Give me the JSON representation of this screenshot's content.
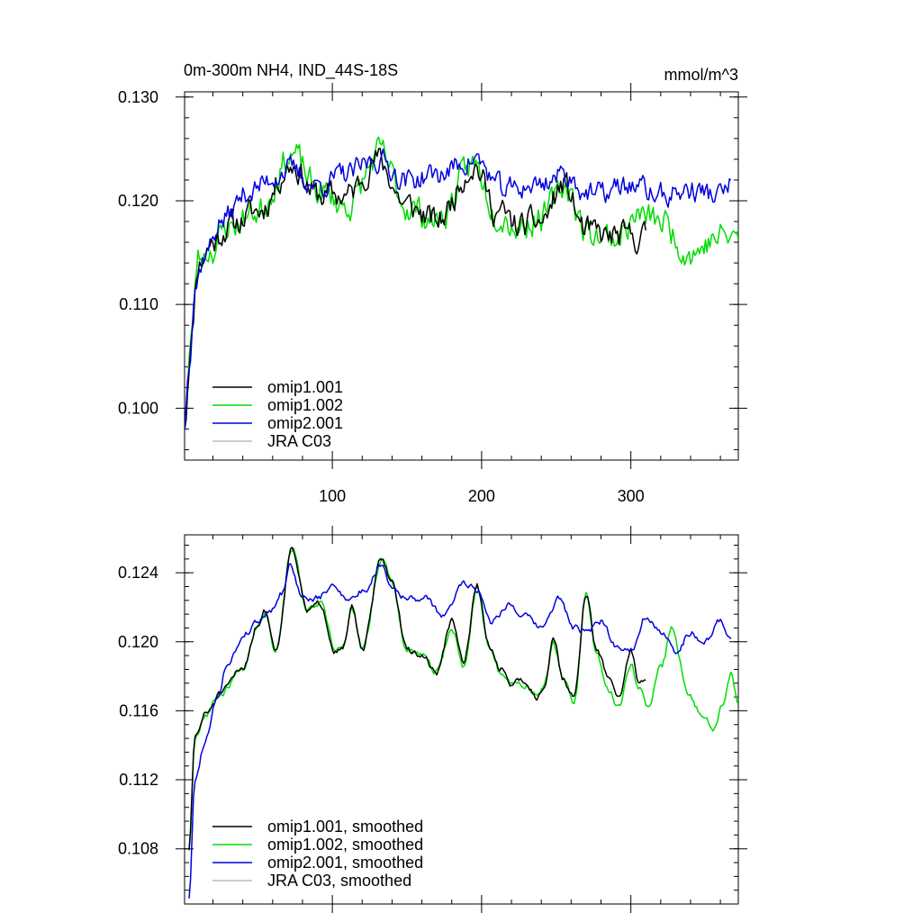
{
  "chart_data": [
    {
      "type": "line",
      "title": "0m-300m NH4, IND_44S-18S",
      "units": "mmol/m^3",
      "xlim": [
        1,
        372
      ],
      "ylim": [
        0.095,
        0.1305
      ],
      "xticks": [
        100,
        200,
        300
      ],
      "xtick_labels": [
        "100",
        "200",
        "300"
      ],
      "yticks": [
        0.1,
        0.11,
        0.12,
        0.13
      ],
      "ytick_labels": [
        "0.100",
        "0.110",
        "0.120",
        "0.130"
      ],
      "legend_position": "bottom-left",
      "series": [
        {
          "name": "omip1.001",
          "color": "#000000",
          "x_end": 310,
          "anchors": [
            [
              1,
              0.0985
            ],
            [
              5,
              0.106
            ],
            [
              10,
              0.114
            ],
            [
              20,
              0.116
            ],
            [
              30,
              0.1175
            ],
            [
              50,
              0.119
            ],
            [
              73,
              0.1235
            ],
            [
              90,
              0.1205
            ],
            [
              110,
              0.1205
            ],
            [
              130,
              0.124
            ],
            [
              150,
              0.1195
            ],
            [
              170,
              0.118
            ],
            [
              195,
              0.1235
            ],
            [
              210,
              0.119
            ],
            [
              225,
              0.1175
            ],
            [
              240,
              0.118
            ],
            [
              255,
              0.1215
            ],
            [
              270,
              0.117
            ],
            [
              285,
              0.1165
            ],
            [
              300,
              0.1165
            ],
            [
              310,
              0.1165
            ]
          ],
          "noise": 0.0014,
          "seed": 11
        },
        {
          "name": "omip1.002",
          "color": "#00dd00",
          "x_end": 372,
          "anchors": [
            [
              1,
              0.0985
            ],
            [
              5,
              0.106
            ],
            [
              10,
              0.1145
            ],
            [
              20,
              0.1155
            ],
            [
              30,
              0.1175
            ],
            [
              50,
              0.119
            ],
            [
              73,
              0.1245
            ],
            [
              90,
              0.121
            ],
            [
              110,
              0.1195
            ],
            [
              132,
              0.1245
            ],
            [
              150,
              0.1195
            ],
            [
              170,
              0.118
            ],
            [
              195,
              0.1235
            ],
            [
              210,
              0.119
            ],
            [
              225,
              0.1175
            ],
            [
              240,
              0.1185
            ],
            [
              257,
              0.1215
            ],
            [
              270,
              0.117
            ],
            [
              290,
              0.1165
            ],
            [
              305,
              0.1185
            ],
            [
              320,
              0.118
            ],
            [
              340,
              0.115
            ],
            [
              360,
              0.1165
            ],
            [
              372,
              0.1165
            ]
          ],
          "noise": 0.0015,
          "seed": 23
        },
        {
          "name": "omip2.001",
          "color": "#0000dd",
          "x_end": 367,
          "anchors": [
            [
              1,
              0.0985
            ],
            [
              4,
              0.105
            ],
            [
              8,
              0.112
            ],
            [
              15,
              0.115
            ],
            [
              25,
              0.118
            ],
            [
              45,
              0.121
            ],
            [
              70,
              0.123
            ],
            [
              90,
              0.1215
            ],
            [
              110,
              0.1225
            ],
            [
              130,
              0.124
            ],
            [
              150,
              0.122
            ],
            [
              170,
              0.1225
            ],
            [
              195,
              0.124
            ],
            [
              215,
              0.121
            ],
            [
              235,
              0.1215
            ],
            [
              255,
              0.1225
            ],
            [
              275,
              0.1205
            ],
            [
              300,
              0.1215
            ],
            [
              320,
              0.1205
            ],
            [
              340,
              0.121
            ],
            [
              360,
              0.1205
            ],
            [
              367,
              0.1215
            ]
          ],
          "noise": 0.0012,
          "seed": 37
        },
        {
          "name": "JRA C03",
          "color": "#bbbbbb",
          "values": []
        }
      ]
    },
    {
      "type": "line",
      "title": "",
      "xlim": [
        1,
        372
      ],
      "ylim": [
        0.1048,
        0.1262
      ],
      "xticks": [
        100,
        200,
        300
      ],
      "xtick_labels": [],
      "yticks": [
        0.108,
        0.112,
        0.116,
        0.12,
        0.124
      ],
      "ytick_labels": [
        "0.108",
        "0.112",
        "0.116",
        "0.120",
        "0.124"
      ],
      "legend_position": "bottom-left",
      "series": [
        {
          "name": "omip1.001, smoothed",
          "color": "#000000",
          "x_end": 310,
          "anchors": [
            [
              4,
              0.108
            ],
            [
              8,
              0.1145
            ],
            [
              15,
              0.1158
            ],
            [
              25,
              0.117
            ],
            [
              40,
              0.1185
            ],
            [
              50,
              0.121
            ],
            [
              55,
              0.1218
            ],
            [
              62,
              0.1195
            ],
            [
              73,
              0.1255
            ],
            [
              83,
              0.1218
            ],
            [
              92,
              0.1222
            ],
            [
              102,
              0.1195
            ],
            [
              108,
              0.1198
            ],
            [
              113,
              0.122
            ],
            [
              120,
              0.1195
            ],
            [
              133,
              0.1248
            ],
            [
              140,
              0.1235
            ],
            [
              150,
              0.1195
            ],
            [
              160,
              0.1192
            ],
            [
              170,
              0.1182
            ],
            [
              180,
              0.1212
            ],
            [
              188,
              0.1188
            ],
            [
              197,
              0.1232
            ],
            [
              205,
              0.1198
            ],
            [
              212,
              0.1185
            ],
            [
              220,
              0.1176
            ],
            [
              228,
              0.1178
            ],
            [
              237,
              0.1168
            ],
            [
              242,
              0.1175
            ],
            [
              248,
              0.1202
            ],
            [
              255,
              0.1178
            ],
            [
              262,
              0.1167
            ],
            [
              270,
              0.1228
            ],
            [
              277,
              0.1195
            ],
            [
              285,
              0.118
            ],
            [
              292,
              0.1168
            ],
            [
              300,
              0.1195
            ],
            [
              305,
              0.1178
            ],
            [
              310,
              0.1178
            ]
          ],
          "noise": 0.0002,
          "seed": 51
        },
        {
          "name": "omip1.002, smoothed",
          "color": "#00dd00",
          "x_end": 372,
          "anchors": [
            [
              4,
              0.108
            ],
            [
              8,
              0.1145
            ],
            [
              15,
              0.1158
            ],
            [
              25,
              0.117
            ],
            [
              40,
              0.1185
            ],
            [
              50,
              0.121
            ],
            [
              55,
              0.1218
            ],
            [
              62,
              0.1195
            ],
            [
              73,
              0.1255
            ],
            [
              83,
              0.1218
            ],
            [
              92,
              0.1222
            ],
            [
              102,
              0.1195
            ],
            [
              108,
              0.1198
            ],
            [
              113,
              0.122
            ],
            [
              120,
              0.1195
            ],
            [
              133,
              0.1248
            ],
            [
              140,
              0.1235
            ],
            [
              150,
              0.1195
            ],
            [
              160,
              0.1192
            ],
            [
              170,
              0.1182
            ],
            [
              180,
              0.1208
            ],
            [
              188,
              0.1185
            ],
            [
              197,
              0.1232
            ],
            [
              205,
              0.1198
            ],
            [
              212,
              0.1182
            ],
            [
              220,
              0.1176
            ],
            [
              228,
              0.1175
            ],
            [
              237,
              0.1168
            ],
            [
              242,
              0.1175
            ],
            [
              248,
              0.1198
            ],
            [
              255,
              0.1178
            ],
            [
              262,
              0.1165
            ],
            [
              270,
              0.1228
            ],
            [
              277,
              0.1192
            ],
            [
              285,
              0.1172
            ],
            [
              292,
              0.1162
            ],
            [
              300,
              0.1188
            ],
            [
              305,
              0.1175
            ],
            [
              312,
              0.1162
            ],
            [
              320,
              0.1185
            ],
            [
              328,
              0.1208
            ],
            [
              338,
              0.117
            ],
            [
              348,
              0.1158
            ],
            [
              355,
              0.115
            ],
            [
              362,
              0.1165
            ],
            [
              367,
              0.1182
            ],
            [
              372,
              0.1165
            ]
          ],
          "noise": 0.0002,
          "seed": 67
        },
        {
          "name": "omip2.001, smoothed",
          "color": "#0000dd",
          "x_end": 367,
          "anchors": [
            [
              4,
              0.1052
            ],
            [
              8,
              0.112
            ],
            [
              14,
              0.114
            ],
            [
              22,
              0.1165
            ],
            [
              30,
              0.1188
            ],
            [
              42,
              0.1205
            ],
            [
              50,
              0.1212
            ],
            [
              58,
              0.1218
            ],
            [
              66,
              0.1228
            ],
            [
              72,
              0.1245
            ],
            [
              80,
              0.1225
            ],
            [
              90,
              0.1225
            ],
            [
              100,
              0.1232
            ],
            [
              112,
              0.1225
            ],
            [
              122,
              0.123
            ],
            [
              133,
              0.1245
            ],
            [
              140,
              0.1232
            ],
            [
              150,
              0.1225
            ],
            [
              162,
              0.1225
            ],
            [
              175,
              0.1215
            ],
            [
              188,
              0.1235
            ],
            [
              197,
              0.123
            ],
            [
              207,
              0.1212
            ],
            [
              218,
              0.1222
            ],
            [
              228,
              0.1215
            ],
            [
              240,
              0.1208
            ],
            [
              252,
              0.1225
            ],
            [
              262,
              0.1208
            ],
            [
              270,
              0.1205
            ],
            [
              280,
              0.1212
            ],
            [
              290,
              0.1198
            ],
            [
              300,
              0.1195
            ],
            [
              310,
              0.1215
            ],
            [
              320,
              0.1205
            ],
            [
              330,
              0.1195
            ],
            [
              340,
              0.1205
            ],
            [
              350,
              0.12
            ],
            [
              360,
              0.1212
            ],
            [
              367,
              0.1202
            ]
          ],
          "noise": 0.0002,
          "seed": 79
        },
        {
          "name": "JRA C03, smoothed",
          "color": "#bbbbbb",
          "values": []
        }
      ]
    }
  ]
}
